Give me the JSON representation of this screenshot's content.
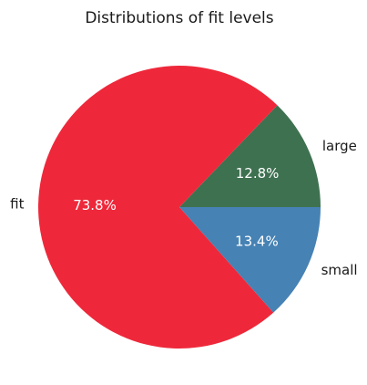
{
  "chart_data": {
    "type": "pie",
    "title": "Distributions of fit levels",
    "start_angle_deg": 0,
    "direction": "counterclockwise",
    "slices": [
      {
        "label": "large",
        "value": 12.8,
        "pct_label": "12.8%",
        "color": "#3e7150"
      },
      {
        "label": "fit",
        "value": 73.8,
        "pct_label": "73.8%",
        "color": "#ee283a"
      },
      {
        "label": "small",
        "value": 13.4,
        "pct_label": "13.4%",
        "color": "#4682b4"
      }
    ]
  }
}
